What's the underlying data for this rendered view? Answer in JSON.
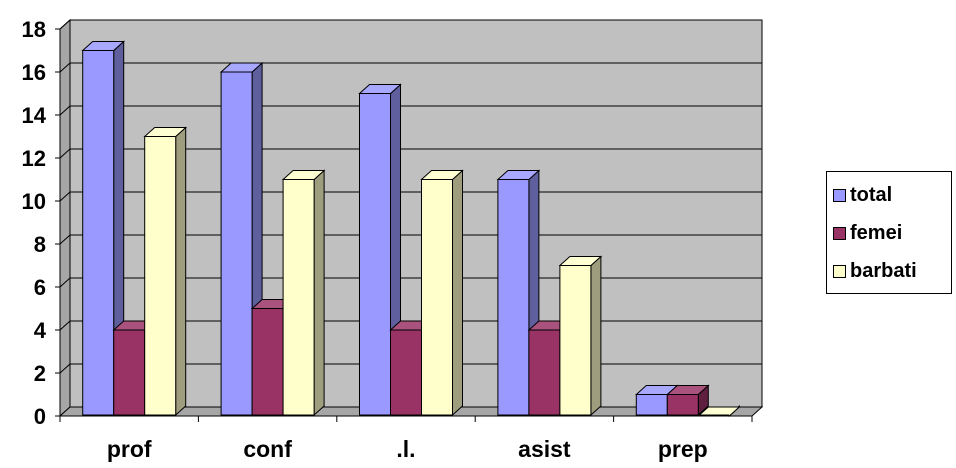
{
  "chart_data": {
    "type": "bar",
    "categories": [
      "prof",
      "conf",
      ".l.",
      "asist",
      "prep"
    ],
    "series": [
      {
        "name": "total",
        "values": [
          17,
          16,
          15,
          11,
          1
        ],
        "color": "#9999ff"
      },
      {
        "name": "femei",
        "values": [
          4,
          5,
          4,
          4,
          1
        ],
        "color": "#993366"
      },
      {
        "name": "barbati",
        "values": [
          13,
          11,
          11,
          7,
          0
        ],
        "color": "#ffffcc"
      }
    ],
    "ylim": [
      0,
      18
    ],
    "yticks": [
      "0",
      "2",
      "4",
      "6",
      "8",
      "10",
      "12",
      "14",
      "16",
      "18"
    ],
    "grid": true,
    "legend_position": "right",
    "style": "3d-clustered-column",
    "wall_color": "#c0c0c0"
  }
}
